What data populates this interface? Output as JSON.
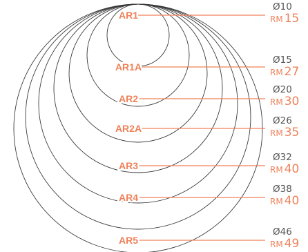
{
  "accent_color": "#ef8159",
  "ring_color": "#3a3a3a",
  "sizes": [
    {
      "code": "AR1",
      "diameter": "Ø10",
      "currency": "RM",
      "price": "15"
    },
    {
      "code": "AR1A",
      "diameter": "Ø15",
      "currency": "RM",
      "price": "27"
    },
    {
      "code": "AR2",
      "diameter": "Ø20",
      "currency": "RM",
      "price": "30"
    },
    {
      "code": "AR2A",
      "diameter": "Ø26",
      "currency": "RM",
      "price": "35"
    },
    {
      "code": "AR3",
      "diameter": "Ø32",
      "currency": "RM",
      "price": "40"
    },
    {
      "code": "AR4",
      "diameter": "Ø38",
      "currency": "RM",
      "price": "40"
    },
    {
      "code": "AR5",
      "diameter": "Ø46",
      "currency": "RM",
      "price": "49"
    }
  ]
}
